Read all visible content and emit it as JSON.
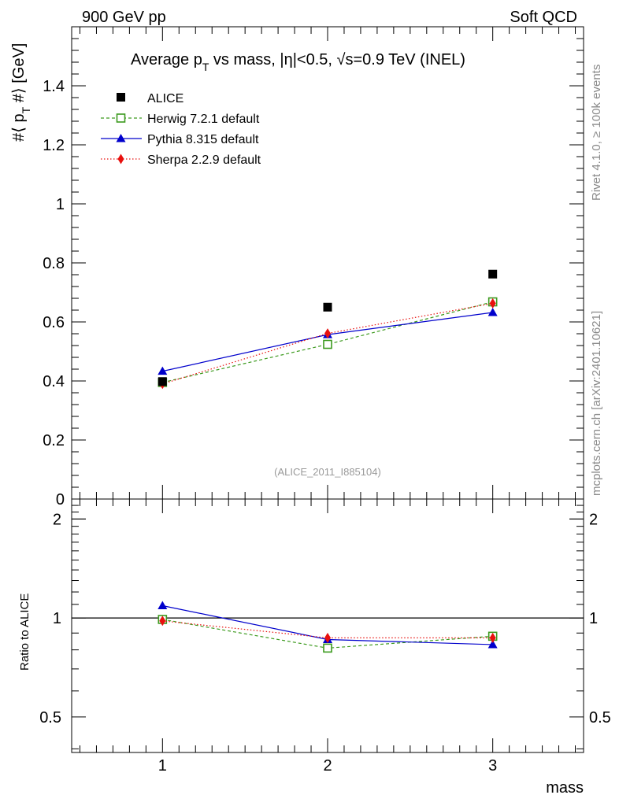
{
  "header": {
    "left_label": "900 GeV pp",
    "right_label": "Soft QCD"
  },
  "side_text": {
    "rivet": "Rivet 4.1.0, ≥ 100k events",
    "mcplots": "mcplots.cern.ch [arXiv:2401.10621]"
  },
  "chart_data": {
    "type": "scatter",
    "title_parts": {
      "prefix": "Average p",
      "sub": "T",
      "mid": " vs mass, |η|<0.5, ",
      "sqrt": "√",
      "suffix": "s=0.9 TeV (INEL)"
    },
    "watermark": "(ALICE_2011_I885104)",
    "xlabel": "mass",
    "xlim": [
      0.45,
      3.55
    ],
    "x_ticks": [
      1,
      2,
      3
    ],
    "x_tick_labels": [
      "1",
      "2",
      "3"
    ],
    "main": {
      "ylabel_parts": {
        "pre": "#⟨ p",
        "sub": "T",
        "post": " #⟩ [GeV]"
      },
      "ylim": [
        0,
        1.6
      ],
      "y_ticks": [
        0,
        0.2,
        0.4,
        0.6,
        0.8,
        1,
        1.2,
        1.4
      ],
      "y_tick_labels": [
        "0",
        "0.2",
        "0.4",
        "0.6",
        "0.8",
        "1",
        "1.2",
        "1.4"
      ]
    },
    "ratio": {
      "ylabel": "Ratio to ALICE",
      "scale": "log",
      "ylim": [
        0.39,
        2.3
      ],
      "y_ticks": [
        0.5,
        1,
        2
      ],
      "y_tick_labels": [
        "0.5",
        "1",
        "2"
      ],
      "reference": 1
    },
    "x": [
      1,
      2,
      3
    ],
    "series": [
      {
        "name": "ALICE",
        "role": "data",
        "marker": "square-filled",
        "line": "none",
        "color": "#000000",
        "values": [
          0.398,
          0.65,
          0.762
        ]
      },
      {
        "name": "Herwig 7.2.1 default",
        "marker": "square-open",
        "line": "dashed",
        "color": "#3c9a1e",
        "values": [
          0.395,
          0.524,
          0.668
        ],
        "ratio": [
          0.99,
          0.81,
          0.88
        ]
      },
      {
        "name": "Pythia 8.315 default",
        "marker": "triangle",
        "line": "solid",
        "color": "#0000cc",
        "values": [
          0.433,
          0.557,
          0.632
        ],
        "ratio": [
          1.09,
          0.86,
          0.83
        ]
      },
      {
        "name": "Sherpa 2.2.9 default",
        "marker": "diamond",
        "line": "dotted",
        "color": "#e8100e",
        "values": [
          0.39,
          0.561,
          0.663
        ],
        "ratio": [
          0.98,
          0.87,
          0.87
        ]
      }
    ]
  }
}
